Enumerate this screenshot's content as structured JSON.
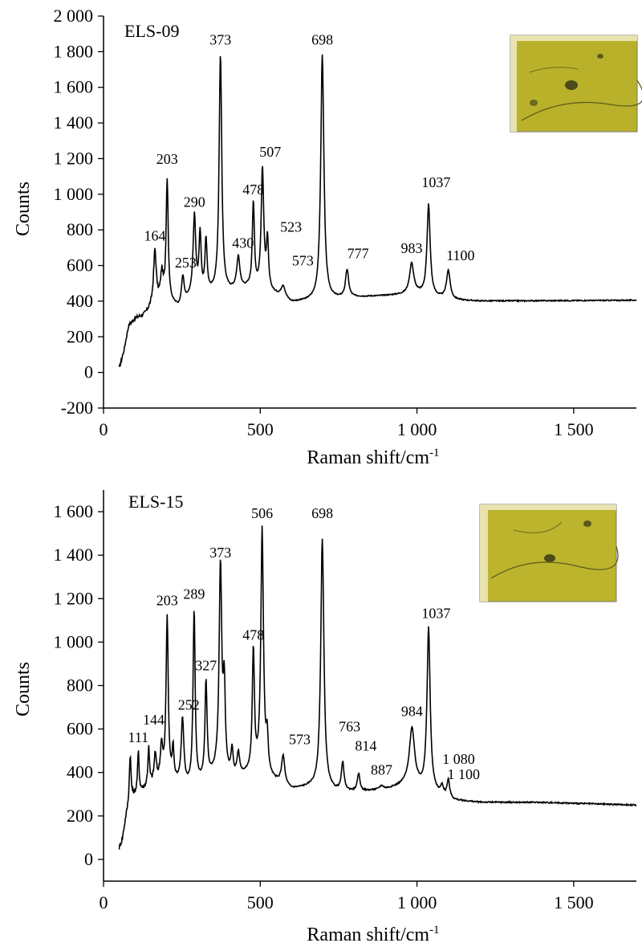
{
  "chart_data": [
    {
      "type": "line",
      "panel_label": "ELS-09",
      "xlabel": "Raman shift/cm",
      "xlabel_superscript": "-1",
      "ylabel": "Counts",
      "xlim": [
        0,
        1700
      ],
      "ylim": [
        -200,
        2000
      ],
      "x_ticks": [
        0,
        500,
        1000,
        1500
      ],
      "x_tick_labels": [
        "0",
        "500",
        "1 000",
        "1 500"
      ],
      "y_ticks": [
        -200,
        0,
        200,
        400,
        600,
        800,
        1000,
        1200,
        1400,
        1600,
        1800,
        2000
      ],
      "y_tick_labels": [
        "-200",
        "0",
        "200",
        "400",
        "600",
        "800",
        "1 000",
        "1 200",
        "1 400",
        "1 600",
        "1 800",
        "2 000"
      ],
      "baseline": [
        [
          50,
          20
        ],
        [
          65,
          120
        ],
        [
          80,
          260
        ],
        [
          100,
          300
        ],
        [
          130,
          320
        ],
        [
          160,
          380
        ],
        [
          200,
          400
        ],
        [
          240,
          360
        ],
        [
          280,
          420
        ],
        [
          340,
          440
        ],
        [
          400,
          450
        ],
        [
          460,
          470
        ],
        [
          540,
          440
        ],
        [
          600,
          390
        ],
        [
          660,
          400
        ],
        [
          740,
          410
        ],
        [
          800,
          420
        ],
        [
          900,
          430
        ],
        [
          1000,
          440
        ],
        [
          1060,
          420
        ],
        [
          1120,
          405
        ],
        [
          1200,
          400
        ],
        [
          1700,
          405
        ]
      ],
      "peaks": [
        {
          "x": 164,
          "y": 680,
          "w": 5,
          "label": "164"
        },
        {
          "x": 186,
          "y": 540,
          "w": 5,
          "label": ""
        },
        {
          "x": 203,
          "y": 1070,
          "w": 4,
          "label": "203"
        },
        {
          "x": 253,
          "y": 530,
          "w": 5,
          "label": "253"
        },
        {
          "x": 290,
          "y": 870,
          "w": 5,
          "label": "290"
        },
        {
          "x": 308,
          "y": 760,
          "w": 4,
          "label": ""
        },
        {
          "x": 327,
          "y": 730,
          "w": 4,
          "label": ""
        },
        {
          "x": 373,
          "y": 1780,
          "w": 5,
          "label": "373"
        },
        {
          "x": 430,
          "y": 640,
          "w": 6,
          "label": "430"
        },
        {
          "x": 478,
          "y": 940,
          "w": 4,
          "label": "478"
        },
        {
          "x": 507,
          "y": 1130,
          "w": 5,
          "label": "507"
        },
        {
          "x": 523,
          "y": 720,
          "w": 4,
          "label": "523"
        },
        {
          "x": 573,
          "y": 480,
          "w": 8,
          "label": "573"
        },
        {
          "x": 698,
          "y": 1780,
          "w": 6,
          "label": "698"
        },
        {
          "x": 777,
          "y": 570,
          "w": 6,
          "label": "777"
        },
        {
          "x": 983,
          "y": 610,
          "w": 8,
          "label": "983"
        },
        {
          "x": 1037,
          "y": 940,
          "w": 6,
          "label": "1037"
        },
        {
          "x": 1100,
          "y": 570,
          "w": 7,
          "label": "1100"
        }
      ],
      "peak_label_positions": {
        "164": [
          164,
          740
        ],
        "203": [
          203,
          1170
        ],
        "253": [
          262,
          590
        ],
        "290": [
          290,
          930
        ],
        "373": [
          373,
          1840
        ],
        "430": [
          445,
          700
        ],
        "478": [
          478,
          1000
        ],
        "507": [
          532,
          1210
        ],
        "523": [
          598,
          790
        ],
        "573": [
          636,
          600
        ],
        "698": [
          698,
          1840
        ],
        "777": [
          812,
          640
        ],
        "983": [
          983,
          670
        ],
        "1037": [
          1061,
          1040
        ],
        "1100": [
          1139,
          630
        ]
      }
    },
    {
      "type": "line",
      "panel_label": "ELS-15",
      "xlabel": "Raman shift/cm",
      "xlabel_superscript": "-1",
      "ylabel": "Counts",
      "xlim": [
        0,
        1700
      ],
      "ylim": [
        -100,
        1700
      ],
      "x_ticks": [
        0,
        500,
        1000,
        1500
      ],
      "x_tick_labels": [
        "0",
        "500",
        "1 000",
        "1 500"
      ],
      "y_ticks": [
        0,
        200,
        400,
        600,
        800,
        1000,
        1200,
        1400,
        1600
      ],
      "y_tick_labels": [
        "0",
        "200",
        "400",
        "600",
        "800",
        "1 000",
        "1 200",
        "1 400",
        "1 600"
      ],
      "baseline": [
        [
          50,
          50
        ],
        [
          60,
          90
        ],
        [
          70,
          180
        ],
        [
          85,
          280
        ],
        [
          110,
          300
        ],
        [
          150,
          340
        ],
        [
          200,
          380
        ],
        [
          260,
          330
        ],
        [
          300,
          340
        ],
        [
          360,
          390
        ],
        [
          420,
          370
        ],
        [
          480,
          400
        ],
        [
          540,
          360
        ],
        [
          600,
          320
        ],
        [
          660,
          330
        ],
        [
          740,
          310
        ],
        [
          820,
          310
        ],
        [
          900,
          320
        ],
        [
          960,
          340
        ],
        [
          1000,
          330
        ],
        [
          1060,
          300
        ],
        [
          1120,
          270
        ],
        [
          1200,
          262
        ],
        [
          1400,
          262
        ],
        [
          1700,
          250
        ]
      ],
      "peaks": [
        {
          "x": 85,
          "y": 480,
          "w": 3,
          "label": ""
        },
        {
          "x": 111,
          "y": 490,
          "w": 3,
          "label": "111"
        },
        {
          "x": 144,
          "y": 510,
          "w": 3,
          "label": "144"
        },
        {
          "x": 165,
          "y": 480,
          "w": 4,
          "label": ""
        },
        {
          "x": 185,
          "y": 520,
          "w": 4,
          "label": ""
        },
        {
          "x": 203,
          "y": 1110,
          "w": 4,
          "label": "203"
        },
        {
          "x": 222,
          "y": 500,
          "w": 3,
          "label": ""
        },
        {
          "x": 252,
          "y": 640,
          "w": 5,
          "label": "252"
        },
        {
          "x": 289,
          "y": 1140,
          "w": 4,
          "label": "289"
        },
        {
          "x": 327,
          "y": 810,
          "w": 4,
          "label": "327"
        },
        {
          "x": 373,
          "y": 1340,
          "w": 5,
          "label": "373"
        },
        {
          "x": 385,
          "y": 760,
          "w": 4,
          "label": ""
        },
        {
          "x": 410,
          "y": 490,
          "w": 4,
          "label": ""
        },
        {
          "x": 430,
          "y": 480,
          "w": 5,
          "label": ""
        },
        {
          "x": 478,
          "y": 950,
          "w": 4,
          "label": "478"
        },
        {
          "x": 506,
          "y": 1510,
          "w": 5,
          "label": "506"
        },
        {
          "x": 522,
          "y": 530,
          "w": 4,
          "label": ""
        },
        {
          "x": 573,
          "y": 470,
          "w": 6,
          "label": "573"
        },
        {
          "x": 698,
          "y": 1470,
          "w": 6,
          "label": "698"
        },
        {
          "x": 763,
          "y": 440,
          "w": 5,
          "label": "763"
        },
        {
          "x": 814,
          "y": 390,
          "w": 5,
          "label": "814"
        },
        {
          "x": 887,
          "y": 335,
          "w": 8,
          "label": "887"
        },
        {
          "x": 984,
          "y": 600,
          "w": 10,
          "label": "984"
        },
        {
          "x": 1037,
          "y": 1060,
          "w": 6,
          "label": "1037"
        },
        {
          "x": 1080,
          "y": 330,
          "w": 5,
          "label": "1 080"
        },
        {
          "x": 1100,
          "y": 360,
          "w": 5,
          "label": "1 100"
        }
      ],
      "peak_label_positions": {
        "111": [
          111,
          540
        ],
        "144": [
          160,
          620
        ],
        "203": [
          203,
          1170
        ],
        "252": [
          272,
          690
        ],
        "289": [
          289,
          1200
        ],
        "327": [
          327,
          870
        ],
        "373": [
          373,
          1390
        ],
        "478": [
          478,
          1010
        ],
        "506": [
          506,
          1570
        ],
        "573": [
          626,
          530
        ],
        "698": [
          698,
          1570
        ],
        "763": [
          785,
          590
        ],
        "814": [
          837,
          500
        ],
        "887": [
          887,
          390
        ],
        "984": [
          984,
          660
        ],
        "1037": [
          1061,
          1110
        ],
        "1 080": [
          1133,
          440
        ],
        "1 100": [
          1149,
          370
        ]
      }
    }
  ]
}
